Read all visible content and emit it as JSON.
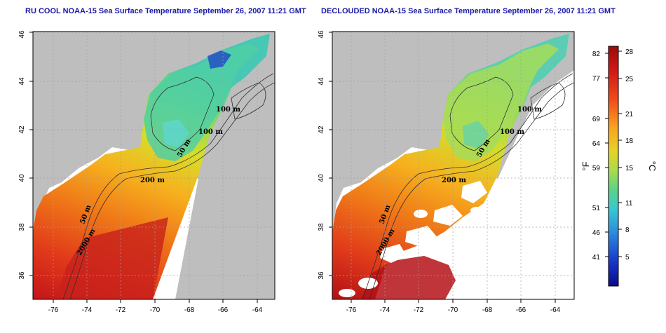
{
  "titles": {
    "left": "RU COOL NOAA-15 Sea Surface Temperature September 26, 2007 11:21 GMT",
    "right": "DECLOUDED NOAA-15 Sea Surface Temperature September 26, 2007 11:21 GMT"
  },
  "axes": {
    "x_ticks": [
      "-76",
      "-74",
      "-72",
      "-70",
      "-68",
      "-66",
      "-64"
    ],
    "y_ticks": [
      "36",
      "38",
      "40",
      "42",
      "44",
      "46"
    ]
  },
  "contour_labels": [
    "100 m",
    "100 m",
    "50 m",
    "200 m",
    "50 m",
    "2000 m"
  ],
  "colorbar": {
    "f_unit": "°F",
    "c_unit": "°C",
    "f_ticks": [
      "82",
      "77",
      "69",
      "64",
      "59",
      "51",
      "46",
      "41"
    ],
    "c_ticks": [
      "28",
      "25",
      "21",
      "18",
      "15",
      "11",
      "8",
      "5"
    ]
  },
  "colors": {
    "land": "#bebebe",
    "no_data": "#ffffff",
    "title": "#1a1aa8",
    "sst_warm": "#c0111b",
    "sst_cool": "#0b0b9a"
  }
}
